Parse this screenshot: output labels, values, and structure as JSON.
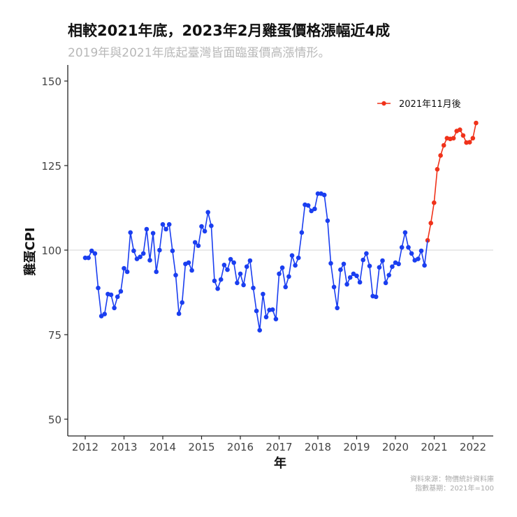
{
  "header": {
    "title": "相較2021年底，2023年2月雞蛋價格漲幅近4成",
    "subtitle": "2019年與2021年底起臺灣皆面臨蛋價高漲情形。"
  },
  "caption": {
    "line1": "資料來源：物價統計資料庫",
    "line2": "指數基期：2021年=100"
  },
  "colors": {
    "before": "#1a3ef0",
    "after": "#f0321a",
    "reference_line": "#dddddd",
    "axis": "#222222"
  },
  "chart_data": {
    "type": "line",
    "title": "相較2021年底，2023年2月雞蛋價格漲幅近4成",
    "subtitle": "2019年與2021年底起臺灣皆面臨蛋價高漲情形。",
    "xlabel": "年",
    "ylabel": "雞蛋CPI",
    "x_ticks": [
      2012,
      2013,
      2014,
      2015,
      2016,
      2017,
      2018,
      2019,
      2020,
      2021,
      2022
    ],
    "y_ticks": [
      50,
      75,
      100,
      125,
      150
    ],
    "ylim": [
      45,
      155
    ],
    "xlim": [
      2011.55,
      2022.55
    ],
    "reference_line_y": 100,
    "grid": false,
    "legend": {
      "position": "top-right",
      "entries": [
        "2021年11月後"
      ]
    },
    "series": [
      {
        "name": "before",
        "color": "#1a3ef0",
        "x_start": 2012.0,
        "step": 0.08333,
        "values": [
          97.7,
          97.7,
          99.8,
          99.0,
          88.8,
          80.5,
          81.1,
          87.0,
          86.8,
          82.9,
          86.2,
          87.8,
          94.6,
          93.6,
          105.2,
          99.8,
          97.4,
          98.0,
          99.0,
          106.2,
          97.0,
          105.0,
          93.6,
          100.0,
          107.6,
          106.2,
          107.6,
          99.8,
          92.6,
          81.2,
          84.5,
          95.9,
          96.3,
          94.0,
          102.3,
          101.3,
          107.0,
          105.6,
          111.2,
          107.2,
          90.9,
          88.6,
          91.3,
          95.6,
          94.2,
          97.3,
          96.3,
          90.3,
          93.0,
          89.7,
          95.1,
          96.9,
          88.8,
          82.0,
          76.3,
          87.0,
          80.2,
          82.3,
          82.4,
          79.6,
          93.0,
          94.8,
          89.1,
          92.2,
          98.4,
          95.5,
          97.7,
          105.2,
          113.4,
          113.2,
          111.6,
          112.2,
          116.7,
          116.7,
          116.3,
          108.7,
          96.1,
          89.1,
          82.9,
          94.2,
          95.9,
          89.9,
          91.9,
          93.0,
          92.4,
          90.5,
          97.1,
          99.0,
          95.3,
          86.4,
          86.2,
          94.9,
          96.9,
          90.3,
          92.6,
          95.1,
          96.3,
          95.9,
          100.8,
          105.2,
          100.8,
          99.0,
          97.0,
          97.4,
          99.8,
          95.5
        ]
      },
      {
        "name": "2021年11月後",
        "color": "#f0321a",
        "x_start": 2020.83,
        "step": 0.08333,
        "values": [
          102.9,
          108.0,
          114.0,
          123.9,
          128.0,
          131.0,
          133.1,
          132.9,
          133.1,
          135.2,
          135.6,
          133.9,
          131.8,
          131.9,
          133.1,
          137.6
        ]
      }
    ]
  }
}
